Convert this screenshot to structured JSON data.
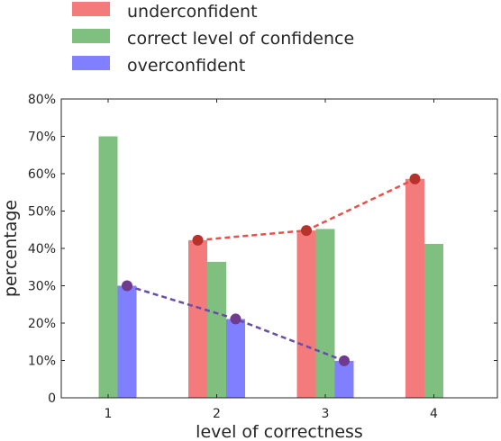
{
  "chart_data": {
    "type": "bar",
    "xlabel": "level of correctness",
    "ylabel": "percentage",
    "categories": [
      "1",
      "2",
      "3",
      "4"
    ],
    "ylim": [
      0,
      80
    ],
    "yticks": [
      0,
      10,
      20,
      30,
      40,
      50,
      60,
      70,
      80
    ],
    "ytick_labels": [
      "0",
      "10%",
      "20%",
      "30%",
      "40%",
      "50%",
      "60%",
      "70%",
      "80%"
    ],
    "legend_placement": "top, above plot",
    "grid": false,
    "series": [
      {
        "name": "underconfident",
        "color": "#f47b7b",
        "values": [
          0,
          42.2,
          44.8,
          58.6
        ]
      },
      {
        "name": "correct level of confidence",
        "color": "#7fbf7f",
        "values": [
          70,
          36.4,
          45.2,
          41.2
        ]
      },
      {
        "name": "overconfident",
        "color": "#7f7fff",
        "values": [
          30,
          21.1,
          9.9,
          0
        ]
      }
    ],
    "trend_lines": [
      {
        "series": "underconfident",
        "color": "#e5524a",
        "marker_color": "#b8312b",
        "categories": [
          "2",
          "3",
          "4"
        ],
        "values": [
          42.2,
          44.8,
          58.6
        ]
      },
      {
        "series": "overconfident",
        "color": "#6a4ba6",
        "marker_color": "#6e3b8e",
        "categories": [
          "1",
          "2",
          "3"
        ],
        "values": [
          30,
          21.1,
          9.9
        ]
      }
    ]
  }
}
